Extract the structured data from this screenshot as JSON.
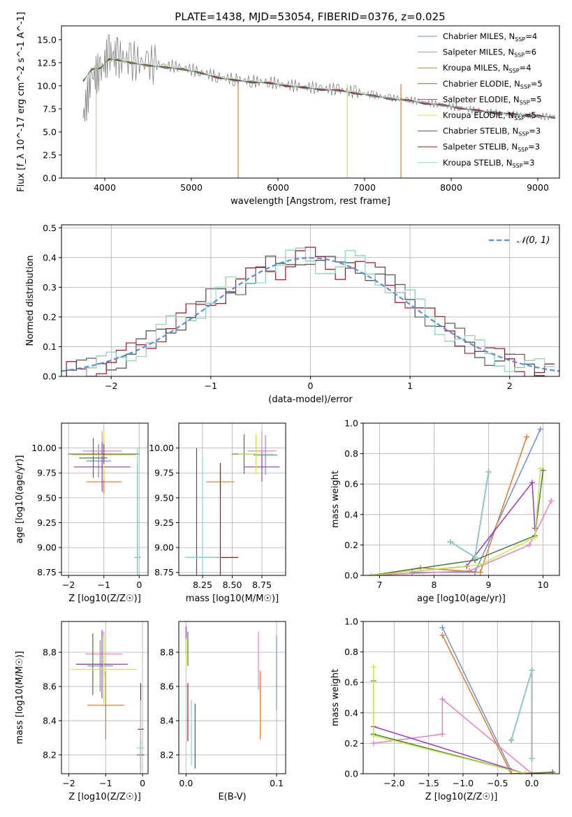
{
  "title": "PLATE=1438, MJD=53054, FIBERID=0376, z=0.025",
  "series": [
    {
      "name": "Chabrier MILES",
      "nssp": "4",
      "color": "#6b8fd6"
    },
    {
      "name": "Salpeter MILES",
      "nssp": "6",
      "color": "#e87fbf"
    },
    {
      "name": "Kroupa MILES",
      "nssp": "4",
      "color": "#dd7a2a"
    },
    {
      "name": "Chabrier ELODIE",
      "nssp": "5",
      "color": "#4d7a3a"
    },
    {
      "name": "Salpeter ELODIE",
      "nssp": "5",
      "color": "#9b39b6"
    },
    {
      "name": "Kroupa ELODIE",
      "nssp": "5",
      "color": "#c9e84a"
    },
    {
      "name": "Chabrier STELIB",
      "nssp": "3",
      "color": "#555555"
    },
    {
      "name": "Salpeter STELIB",
      "nssp": "3",
      "color": "#a01818"
    },
    {
      "name": "Kroupa STELIB",
      "nssp": "3",
      "color": "#7fd8d8"
    }
  ],
  "chart_data": [
    {
      "id": "spectrum",
      "type": "line",
      "title": "PLATE=1438, MJD=53054, FIBERID=0376, z=0.025",
      "xlabel": "wavelength [Angstrom, rest frame]",
      "ylabel": "Flux [f_λ 10^-17 erg cm^-2 s^-1 A^-1]",
      "xlim": [
        3500,
        9250
      ],
      "ylim": [
        0,
        16.5
      ],
      "xticks": [
        "4000",
        "5000",
        "6000",
        "7000",
        "8000",
        "9000"
      ],
      "yticks": [
        "0.0",
        "2.5",
        "5.0",
        "7.5",
        "10.0",
        "12.5",
        "15.0"
      ],
      "data_x": [
        3750,
        3850,
        3950,
        4050,
        4150,
        4300,
        4500,
        4700,
        4900,
        5100,
        5300,
        5500,
        5700,
        5900,
        6100,
        6300,
        6500,
        6700,
        6900,
        7100,
        7300,
        7500,
        7700,
        7900,
        8100,
        8300,
        8500,
        8700,
        8900,
        9000,
        9200
      ],
      "data_y": [
        6.5,
        11.0,
        11.5,
        13.5,
        13.0,
        12.7,
        12.4,
        12.2,
        12.0,
        11.5,
        11.0,
        10.7,
        10.5,
        10.4,
        10.1,
        9.9,
        9.7,
        9.6,
        9.3,
        9.0,
        8.7,
        8.5,
        8.2,
        7.9,
        7.6,
        7.3,
        7.1,
        6.9,
        6.8,
        6.7,
        6.6
      ],
      "model_y": [
        10.5,
        11.8,
        11.9,
        12.9,
        12.8,
        12.5,
        12.2,
        12.0,
        11.8,
        11.4,
        10.9,
        10.6,
        10.4,
        10.3,
        10.0,
        9.8,
        9.6,
        9.5,
        9.2,
        8.9,
        8.6,
        8.4,
        8.1,
        7.9,
        7.6,
        7.3,
        7.1,
        6.9,
        6.8,
        6.7,
        6.6
      ],
      "legend": "top-right"
    },
    {
      "id": "residuals",
      "type": "line",
      "xlabel": "(data-model)/error",
      "ylabel": "Normed distribution",
      "xlim": [
        -2.5,
        2.5
      ],
      "ylim": [
        0,
        0.51
      ],
      "xticks": [
        "−2",
        "−1",
        "0",
        "1",
        "2"
      ],
      "yticks": [
        "0.0",
        "0.1",
        "0.2",
        "0.3",
        "0.4",
        "0.5"
      ],
      "hist_x": [
        -2.4,
        -2.3,
        -2.2,
        -2.1,
        -2.0,
        -1.9,
        -1.8,
        -1.7,
        -1.6,
        -1.5,
        -1.4,
        -1.3,
        -1.2,
        -1.1,
        -1.0,
        -0.9,
        -0.8,
        -0.7,
        -0.6,
        -0.5,
        -0.4,
        -0.3,
        -0.2,
        -0.1,
        0.0,
        0.1,
        0.2,
        0.3,
        0.4,
        0.5,
        0.6,
        0.7,
        0.8,
        0.9,
        1.0,
        1.1,
        1.2,
        1.3,
        1.4,
        1.5,
        1.6,
        1.7,
        1.8,
        1.9,
        2.0,
        2.1,
        2.2,
        2.3,
        2.4
      ],
      "hist_y": [
        0.02,
        0.025,
        0.03,
        0.04,
        0.05,
        0.06,
        0.08,
        0.1,
        0.12,
        0.15,
        0.17,
        0.19,
        0.21,
        0.23,
        0.26,
        0.28,
        0.3,
        0.31,
        0.33,
        0.35,
        0.37,
        0.36,
        0.39,
        0.41,
        0.4,
        0.38,
        0.37,
        0.36,
        0.39,
        0.38,
        0.35,
        0.34,
        0.31,
        0.28,
        0.26,
        0.23,
        0.2,
        0.17,
        0.15,
        0.13,
        0.11,
        0.09,
        0.07,
        0.06,
        0.05,
        0.04,
        0.03,
        0.025,
        0.02
      ],
      "legend_label": "𝒩(0, 1)",
      "legend": "top-right"
    },
    {
      "id": "age-vs-z",
      "type": "scatter",
      "xlabel": "Z [log10(Z/Z☉)]",
      "ylabel": "age  [log10(age/yr)]",
      "xlim": [
        -2.2,
        0.25
      ],
      "ylim": [
        8.72,
        10.25
      ],
      "xticks": [
        "−2",
        "−1",
        "0"
      ],
      "yticks": [
        "8.75",
        "9.00",
        "9.25",
        "9.50",
        "9.75",
        "10.00"
      ],
      "points": [
        {
          "s": 0,
          "x": -1.15,
          "y": 9.87,
          "xe": 0.35,
          "ye": 0.17
        },
        {
          "s": 1,
          "x": -1.05,
          "y": 9.97,
          "xe": 0.55,
          "ye": 0.2
        },
        {
          "s": 2,
          "x": -1.0,
          "y": 9.66,
          "xe": 0.5,
          "ye": 0.12
        },
        {
          "s": 3,
          "x": -1.3,
          "y": 9.9,
          "xe": 0.4,
          "ye": 0.2
        },
        {
          "s": 4,
          "x": -1.05,
          "y": 9.81,
          "xe": 0.8,
          "ye": 0.25
        },
        {
          "s": 5,
          "x": -1.0,
          "y": 9.93,
          "xe": 0.9,
          "ye": 0.25
        },
        {
          "s": 6,
          "x": -1.0,
          "y": 9.94,
          "xe": 1.0,
          "ye": 0.1
        },
        {
          "s": 7,
          "x": -0.05,
          "y": 8.9,
          "xe": 0.08,
          "ye": 0.95
        },
        {
          "s": 8,
          "x": -0.05,
          "y": 8.9,
          "xe": 0.1,
          "ye": 1.1
        }
      ]
    },
    {
      "id": "age-vs-mass",
      "type": "scatter",
      "xlabel": "mass [log10(M/M☉)]",
      "ylabel": "",
      "xlim": [
        8.05,
        8.95
      ],
      "ylim": [
        8.72,
        10.25
      ],
      "xticks": [
        "8.25",
        "8.50",
        "8.75"
      ],
      "yticks": [
        "8.75",
        "9.00",
        "9.25",
        "9.50",
        "9.75",
        "10.00"
      ],
      "points": [
        {
          "s": 0,
          "x": 8.78,
          "y": 9.93,
          "xe": 0.1,
          "ye": 0.2
        },
        {
          "s": 1,
          "x": 8.75,
          "y": 9.97,
          "xe": 0.12,
          "ye": 0.2
        },
        {
          "s": 2,
          "x": 8.4,
          "y": 9.66,
          "xe": 0.12,
          "ye": 0.12
        },
        {
          "s": 3,
          "x": 8.6,
          "y": 9.94,
          "xe": 0.1,
          "ye": 0.2
        },
        {
          "s": 4,
          "x": 8.75,
          "y": 9.81,
          "xe": 0.15,
          "ye": 0.15
        },
        {
          "s": 5,
          "x": 8.7,
          "y": 9.94,
          "xe": 0.15,
          "ye": 0.2
        },
        {
          "s": 6,
          "x": 8.2,
          "y": 8.9,
          "xe": 0.08,
          "ye": 1.1
        },
        {
          "s": 7,
          "x": 8.4,
          "y": 8.9,
          "xe": 0.15,
          "ye": 0.95
        },
        {
          "s": 8,
          "x": 8.25,
          "y": 8.9,
          "xe": 0.15,
          "ye": 1.0
        }
      ]
    },
    {
      "id": "weight-vs-age",
      "type": "line",
      "xlabel": "age  [log10(age/yr)]",
      "ylabel": "mass weight",
      "xlim": [
        6.7,
        10.3
      ],
      "ylim": [
        0,
        1.0
      ],
      "xticks": [
        "7",
        "8",
        "9",
        "10"
      ],
      "yticks": [
        "0.0",
        "0.2",
        "0.4",
        "0.6",
        "0.8",
        "1.0"
      ],
      "series": [
        {
          "s": 0,
          "x": [
            7.6,
            8.75,
            9.95
          ],
          "y": [
            0.02,
            0.02,
            0.96
          ]
        },
        {
          "s": 1,
          "x": [
            6.85,
            8.65,
            9.75,
            10.15
          ],
          "y": [
            0.0,
            0.03,
            0.2,
            0.49
          ]
        },
        {
          "s": 2,
          "x": [
            6.85,
            7.75,
            8.85,
            9.7
          ],
          "y": [
            0.0,
            0.05,
            0.02,
            0.91
          ]
        },
        {
          "s": 3,
          "x": [
            6.85,
            8.75,
            9.85,
            10.0
          ],
          "y": [
            0.0,
            0.1,
            0.26,
            0.69
          ]
        },
        {
          "s": 4,
          "x": [
            6.85,
            8.6,
            9.8,
            9.85
          ],
          "y": [
            0.0,
            0.06,
            0.61,
            0.31
          ]
        },
        {
          "s": 5,
          "x": [
            6.85,
            8.85,
            9.85,
            9.95
          ],
          "y": [
            0.0,
            0.07,
            0.25,
            0.7
          ]
        },
        {
          "s": 6,
          "x": [
            8.3,
            8.75,
            9.0
          ],
          "y": [
            0.22,
            0.12,
            0.68
          ]
        },
        {
          "s": 7,
          "x": [
            8.3,
            8.75,
            9.0
          ],
          "y": [
            0.22,
            0.12,
            0.68
          ]
        },
        {
          "s": 8,
          "x": [
            8.3,
            8.75,
            9.0
          ],
          "y": [
            0.22,
            0.12,
            0.68
          ]
        }
      ]
    },
    {
      "id": "mass-vs-z",
      "type": "scatter",
      "xlabel": "Z [log10(Z/Z☉)]",
      "ylabel": "mass [log10(M/M☉)]",
      "xlim": [
        -2.2,
        0.15
      ],
      "ylim": [
        8.09,
        8.98
      ],
      "xticks": [
        "−2",
        "−1",
        "0"
      ],
      "yticks": [
        "8.2",
        "8.4",
        "8.6",
        "8.8"
      ],
      "points": [
        {
          "s": 0,
          "x": -1.15,
          "y": 8.72,
          "xe": 0.35,
          "ye": 0.15
        },
        {
          "s": 1,
          "x": -1.05,
          "y": 8.79,
          "xe": 0.5,
          "ye": 0.13
        },
        {
          "s": 2,
          "x": -1.0,
          "y": 8.49,
          "xe": 0.5,
          "ye": 0.2
        },
        {
          "s": 3,
          "x": -1.35,
          "y": 8.73,
          "xe": 0.45,
          "ye": 0.18
        },
        {
          "s": 4,
          "x": -1.1,
          "y": 8.73,
          "xe": 0.7,
          "ye": 0.2
        },
        {
          "s": 5,
          "x": -1.05,
          "y": 8.7,
          "xe": 0.9,
          "ye": 0.2
        },
        {
          "s": 6,
          "x": -0.05,
          "y": 8.2,
          "xe": 0.1,
          "ye": 0.08
        },
        {
          "s": 7,
          "x": -0.05,
          "y": 8.35,
          "xe": 0.08,
          "ye": 0.27
        },
        {
          "s": 8,
          "x": -0.05,
          "y": 8.24,
          "xe": 0.1,
          "ye": 0.28
        }
      ]
    },
    {
      "id": "mass-vs-ebv",
      "type": "scatter",
      "xlabel": "E(B-V)",
      "ylabel": "",
      "xlim": [
        -0.008,
        0.11
      ],
      "ylim": [
        8.09,
        8.98
      ],
      "xticks": [
        "0.0",
        "0.1"
      ],
      "yticks": [
        "8.2",
        "8.4",
        "8.6",
        "8.8"
      ],
      "points": [
        {
          "s": 0,
          "x": 0.1,
          "y": 8.68,
          "xe": 0,
          "ye": 0.22
        },
        {
          "s": 1,
          "x": 0.08,
          "y": 8.75,
          "xe": 0,
          "ye": 0.17
        },
        {
          "s": 2,
          "x": 0.082,
          "y": 8.49,
          "xe": 0,
          "ye": 0.2
        },
        {
          "s": 3,
          "x": 0.002,
          "y": 8.82,
          "xe": 0,
          "ye": 0.1
        },
        {
          "s": 4,
          "x": 0.0,
          "y": 8.87,
          "xe": 0,
          "ye": 0.08
        },
        {
          "s": 5,
          "x": 0.0,
          "y": 8.8,
          "xe": 0,
          "ye": 0.08
        },
        {
          "s": 6,
          "x": 0.01,
          "y": 8.31,
          "xe": 0,
          "ye": 0.19
        },
        {
          "s": 7,
          "x": 0.002,
          "y": 8.45,
          "xe": 0,
          "ye": 0.17
        },
        {
          "s": 8,
          "x": 0.006,
          "y": 8.33,
          "xe": 0,
          "ye": 0.19
        }
      ]
    },
    {
      "id": "weight-vs-z",
      "type": "line",
      "xlabel": "Z [log10(Z/Z☉)]",
      "ylabel": "mass weight",
      "xlim": [
        -2.45,
        0.4
      ],
      "ylim": [
        0,
        1.0
      ],
      "xticks": [
        "−2.0",
        "−1.5",
        "−1.0",
        "−0.5",
        "0.0"
      ],
      "yticks": [
        "0.0",
        "0.2",
        "0.4",
        "0.6",
        "0.8",
        "1.0"
      ],
      "series": [
        {
          "s": 0,
          "x": [
            -1.3,
            -0.3
          ],
          "y": [
            0.96,
            0.02
          ]
        },
        {
          "s": 1,
          "x": [
            -2.3,
            -1.3,
            -1.3,
            0.0
          ],
          "y": [
            0.2,
            0.26,
            0.49,
            0.0
          ]
        },
        {
          "s": 2,
          "x": [
            -1.3,
            -0.3,
            0.3
          ],
          "y": [
            0.91,
            0.0,
            0.01
          ]
        },
        {
          "s": 3,
          "x": [
            -2.3,
            -2.3,
            -0.1,
            0.3
          ],
          "y": [
            0.61,
            0.26,
            0.0,
            0.01
          ]
        },
        {
          "s": 4,
          "x": [
            -2.3,
            -0.1
          ],
          "y": [
            0.31,
            0.0
          ]
        },
        {
          "s": 5,
          "x": [
            -2.3,
            -2.3,
            -0.1
          ],
          "y": [
            0.7,
            0.25,
            0.0
          ]
        },
        {
          "s": 6,
          "x": [
            -0.3,
            0.0,
            0.0
          ],
          "y": [
            0.22,
            0.68,
            0.1
          ]
        },
        {
          "s": 7,
          "x": [
            -0.3,
            0.0,
            0.0
          ],
          "y": [
            0.22,
            0.68,
            0.1
          ]
        },
        {
          "s": 8,
          "x": [
            -0.3,
            0.0,
            0.0
          ],
          "y": [
            0.22,
            0.68,
            0.1
          ]
        }
      ]
    }
  ]
}
